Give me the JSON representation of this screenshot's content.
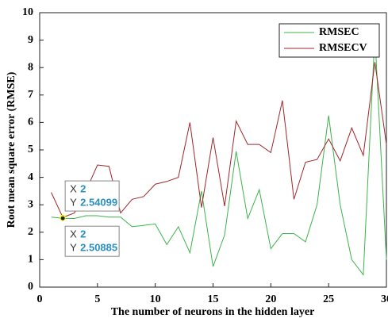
{
  "chart_data": {
    "type": "line",
    "x_label": "The number of neurons in the hidden layer",
    "y_label": "Root mean square error (RMSE)",
    "x": [
      1,
      2,
      3,
      4,
      5,
      6,
      7,
      8,
      9,
      10,
      11,
      12,
      13,
      14,
      15,
      16,
      17,
      18,
      19,
      20,
      21,
      22,
      23,
      24,
      25,
      26,
      27,
      28,
      29,
      30
    ],
    "series": [
      {
        "name": "RMSEC",
        "color": "#3cb44b",
        "values": [
          2.55,
          2.50885,
          2.5,
          2.6,
          2.6,
          2.55,
          2.55,
          2.2,
          2.25,
          2.3,
          1.55,
          2.2,
          1.25,
          3.5,
          0.75,
          1.9,
          4.95,
          2.5,
          3.55,
          1.4,
          1.95,
          1.95,
          1.65,
          3.0,
          6.25,
          3.0,
          1.0,
          0.45,
          9.2,
          1.0
        ]
      },
      {
        "name": "RMSECV",
        "color": "#a0262b",
        "values": [
          3.45,
          2.54099,
          2.7,
          3.5,
          4.45,
          4.4,
          2.7,
          3.2,
          3.3,
          3.75,
          3.85,
          4.0,
          6.0,
          2.9,
          5.45,
          2.95,
          6.05,
          5.2,
          5.2,
          4.9,
          6.8,
          3.2,
          4.55,
          4.65,
          5.4,
          4.6,
          5.8,
          4.8,
          8.2,
          5.2
        ]
      }
    ],
    "xlim": [
      0,
      30
    ],
    "xticks": [
      0,
      5,
      10,
      15,
      20,
      25,
      30
    ],
    "ylim": [
      0,
      10
    ],
    "yticks": [
      0,
      1,
      2,
      3,
      4,
      5,
      6,
      7,
      8,
      9,
      10
    ],
    "legend": "top-right",
    "datatips": [
      {
        "x_label": "X",
        "x": 2,
        "y_label": "Y",
        "y": 2.54099
      },
      {
        "x_label": "X",
        "x": 2,
        "y_label": "Y",
        "y": 2.50885
      }
    ]
  }
}
